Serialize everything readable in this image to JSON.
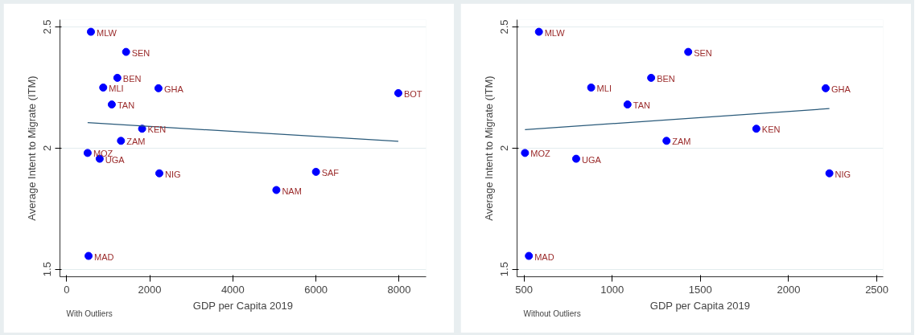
{
  "chart_data": [
    {
      "type": "scatter",
      "xlabel": "GDP per Capita 2019",
      "ylabel": "Average Intent to Migrate (ITM)",
      "xlim": [
        -160,
        8650
      ],
      "ylim": [
        1.469,
        2.53
      ],
      "xticks": [
        0,
        2000,
        4000,
        6000,
        8000
      ],
      "yticks": [
        1.5,
        2,
        2.5
      ],
      "grid": "y",
      "series": [
        {
          "marker": "circle",
          "color": "#0000ff",
          "x": [
            585,
            1431,
            1221,
            881,
            1087,
            2210,
            1817,
            1308,
            506,
            796,
            2231,
            528,
            7981,
            6000,
            5047
          ],
          "values": [
            2.48,
            2.397,
            2.29,
            2.25,
            2.18,
            2.247,
            2.08,
            2.03,
            1.98,
            1.956,
            1.896,
            1.555,
            2.227,
            1.902,
            1.827
          ]
        },
        {
          "type": "line",
          "color": "#2a5a7a",
          "x": [
            506,
            7981
          ],
          "values": [
            2.105,
            2.028
          ]
        }
      ],
      "annotations": [
        {
          "text": "MLW",
          "x": 585,
          "y": 2.48
        },
        {
          "text": "SEN",
          "x": 1431,
          "y": 2.397
        },
        {
          "text": "BEN",
          "x": 1221,
          "y": 2.29
        },
        {
          "text": "MLI",
          "x": 881,
          "y": 2.25
        },
        {
          "text": "TAN",
          "x": 1087,
          "y": 2.18
        },
        {
          "text": "GHA",
          "x": 2210,
          "y": 2.247
        },
        {
          "text": "KEN",
          "x": 1817,
          "y": 2.08
        },
        {
          "text": "ZAM",
          "x": 1308,
          "y": 2.03
        },
        {
          "text": "MOZ",
          "x": 506,
          "y": 1.98
        },
        {
          "text": "UGA",
          "x": 796,
          "y": 1.956
        },
        {
          "text": "NIG",
          "x": 2231,
          "y": 1.896
        },
        {
          "text": "MAD",
          "x": 528,
          "y": 1.555
        },
        {
          "text": "BOT",
          "x": 7981,
          "y": 2.227
        },
        {
          "text": "SAF",
          "x": 6000,
          "y": 1.902
        },
        {
          "text": "NAM",
          "x": 5047,
          "y": 1.827
        },
        "With Outliers"
      ]
    },
    {
      "type": "scatter",
      "xlabel": "GDP per Capita 2019",
      "ylabel": "Average Intent to Migrate (ITM)",
      "xlim": [
        461,
        2536
      ],
      "ylim": [
        1.469,
        2.53
      ],
      "xticks": [
        500,
        1000,
        1500,
        2000,
        2500
      ],
      "yticks": [
        1.5,
        2,
        2.5
      ],
      "grid": "y",
      "series": [
        {
          "marker": "circle",
          "color": "#0000ff",
          "x": [
            585,
            1431,
            1221,
            881,
            1087,
            2210,
            1817,
            1308,
            506,
            796,
            2231,
            528
          ],
          "values": [
            2.48,
            2.397,
            2.29,
            2.25,
            2.18,
            2.247,
            2.08,
            2.03,
            1.98,
            1.956,
            1.896,
            1.555
          ]
        },
        {
          "type": "line",
          "color": "#2a5a7a",
          "x": [
            506,
            2231
          ],
          "values": [
            2.076,
            2.163
          ]
        }
      ],
      "annotations": [
        {
          "text": "MLW",
          "x": 585,
          "y": 2.48
        },
        {
          "text": "SEN",
          "x": 1431,
          "y": 2.397
        },
        {
          "text": "BEN",
          "x": 1221,
          "y": 2.29
        },
        {
          "text": "MLI",
          "x": 881,
          "y": 2.25
        },
        {
          "text": "TAN",
          "x": 1087,
          "y": 2.18
        },
        {
          "text": "GHA",
          "x": 2210,
          "y": 2.247
        },
        {
          "text": "KEN",
          "x": 1817,
          "y": 2.08
        },
        {
          "text": "ZAM",
          "x": 1308,
          "y": 2.03
        },
        {
          "text": "MOZ",
          "x": 506,
          "y": 1.98
        },
        {
          "text": "UGA",
          "x": 796,
          "y": 1.956
        },
        {
          "text": "NIG",
          "x": 2231,
          "y": 1.896
        },
        {
          "text": "MAD",
          "x": 528,
          "y": 1.555
        },
        "Without Outliers"
      ]
    }
  ]
}
